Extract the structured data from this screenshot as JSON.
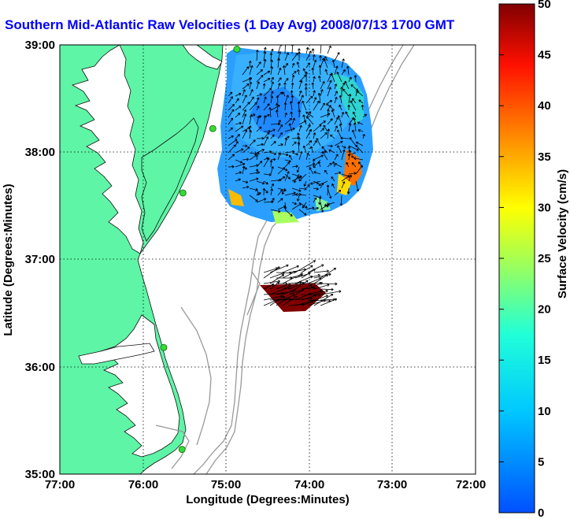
{
  "title": "Southern Mid-Atlantic Raw Velocities (1 Day Avg) 2008/07/13 1700 GMT",
  "xlabel": "Longitude (Degrees:Minutes)",
  "ylabel": "Latitude (Degrees:Minutes)",
  "x_ticks": [
    "77:00",
    "76:00",
    "75:00",
    "74:00",
    "73:00",
    "72:00"
  ],
  "y_ticks": [
    "39:00",
    "38:00",
    "37:00",
    "36:00",
    "35:00"
  ],
  "colorbar": {
    "label": "Surface Velocity (cm/s)",
    "ticks": [
      "0",
      "5",
      "10",
      "15",
      "20",
      "25",
      "30",
      "35",
      "40",
      "45",
      "50"
    ],
    "min": 0,
    "max": 50
  },
  "colors": {
    "land": "#5ef5a6",
    "water": "#ffffff",
    "title": "#0000ff",
    "stations": "#33dd33",
    "isobath": "#999999"
  },
  "stations": [
    {
      "lon": -74.87,
      "lat": 38.96
    },
    {
      "lon": -75.16,
      "lat": 38.22
    },
    {
      "lon": -75.52,
      "lat": 37.62
    },
    {
      "lon": -75.75,
      "lat": 36.18
    },
    {
      "lon": -75.53,
      "lat": 35.23
    }
  ]
}
